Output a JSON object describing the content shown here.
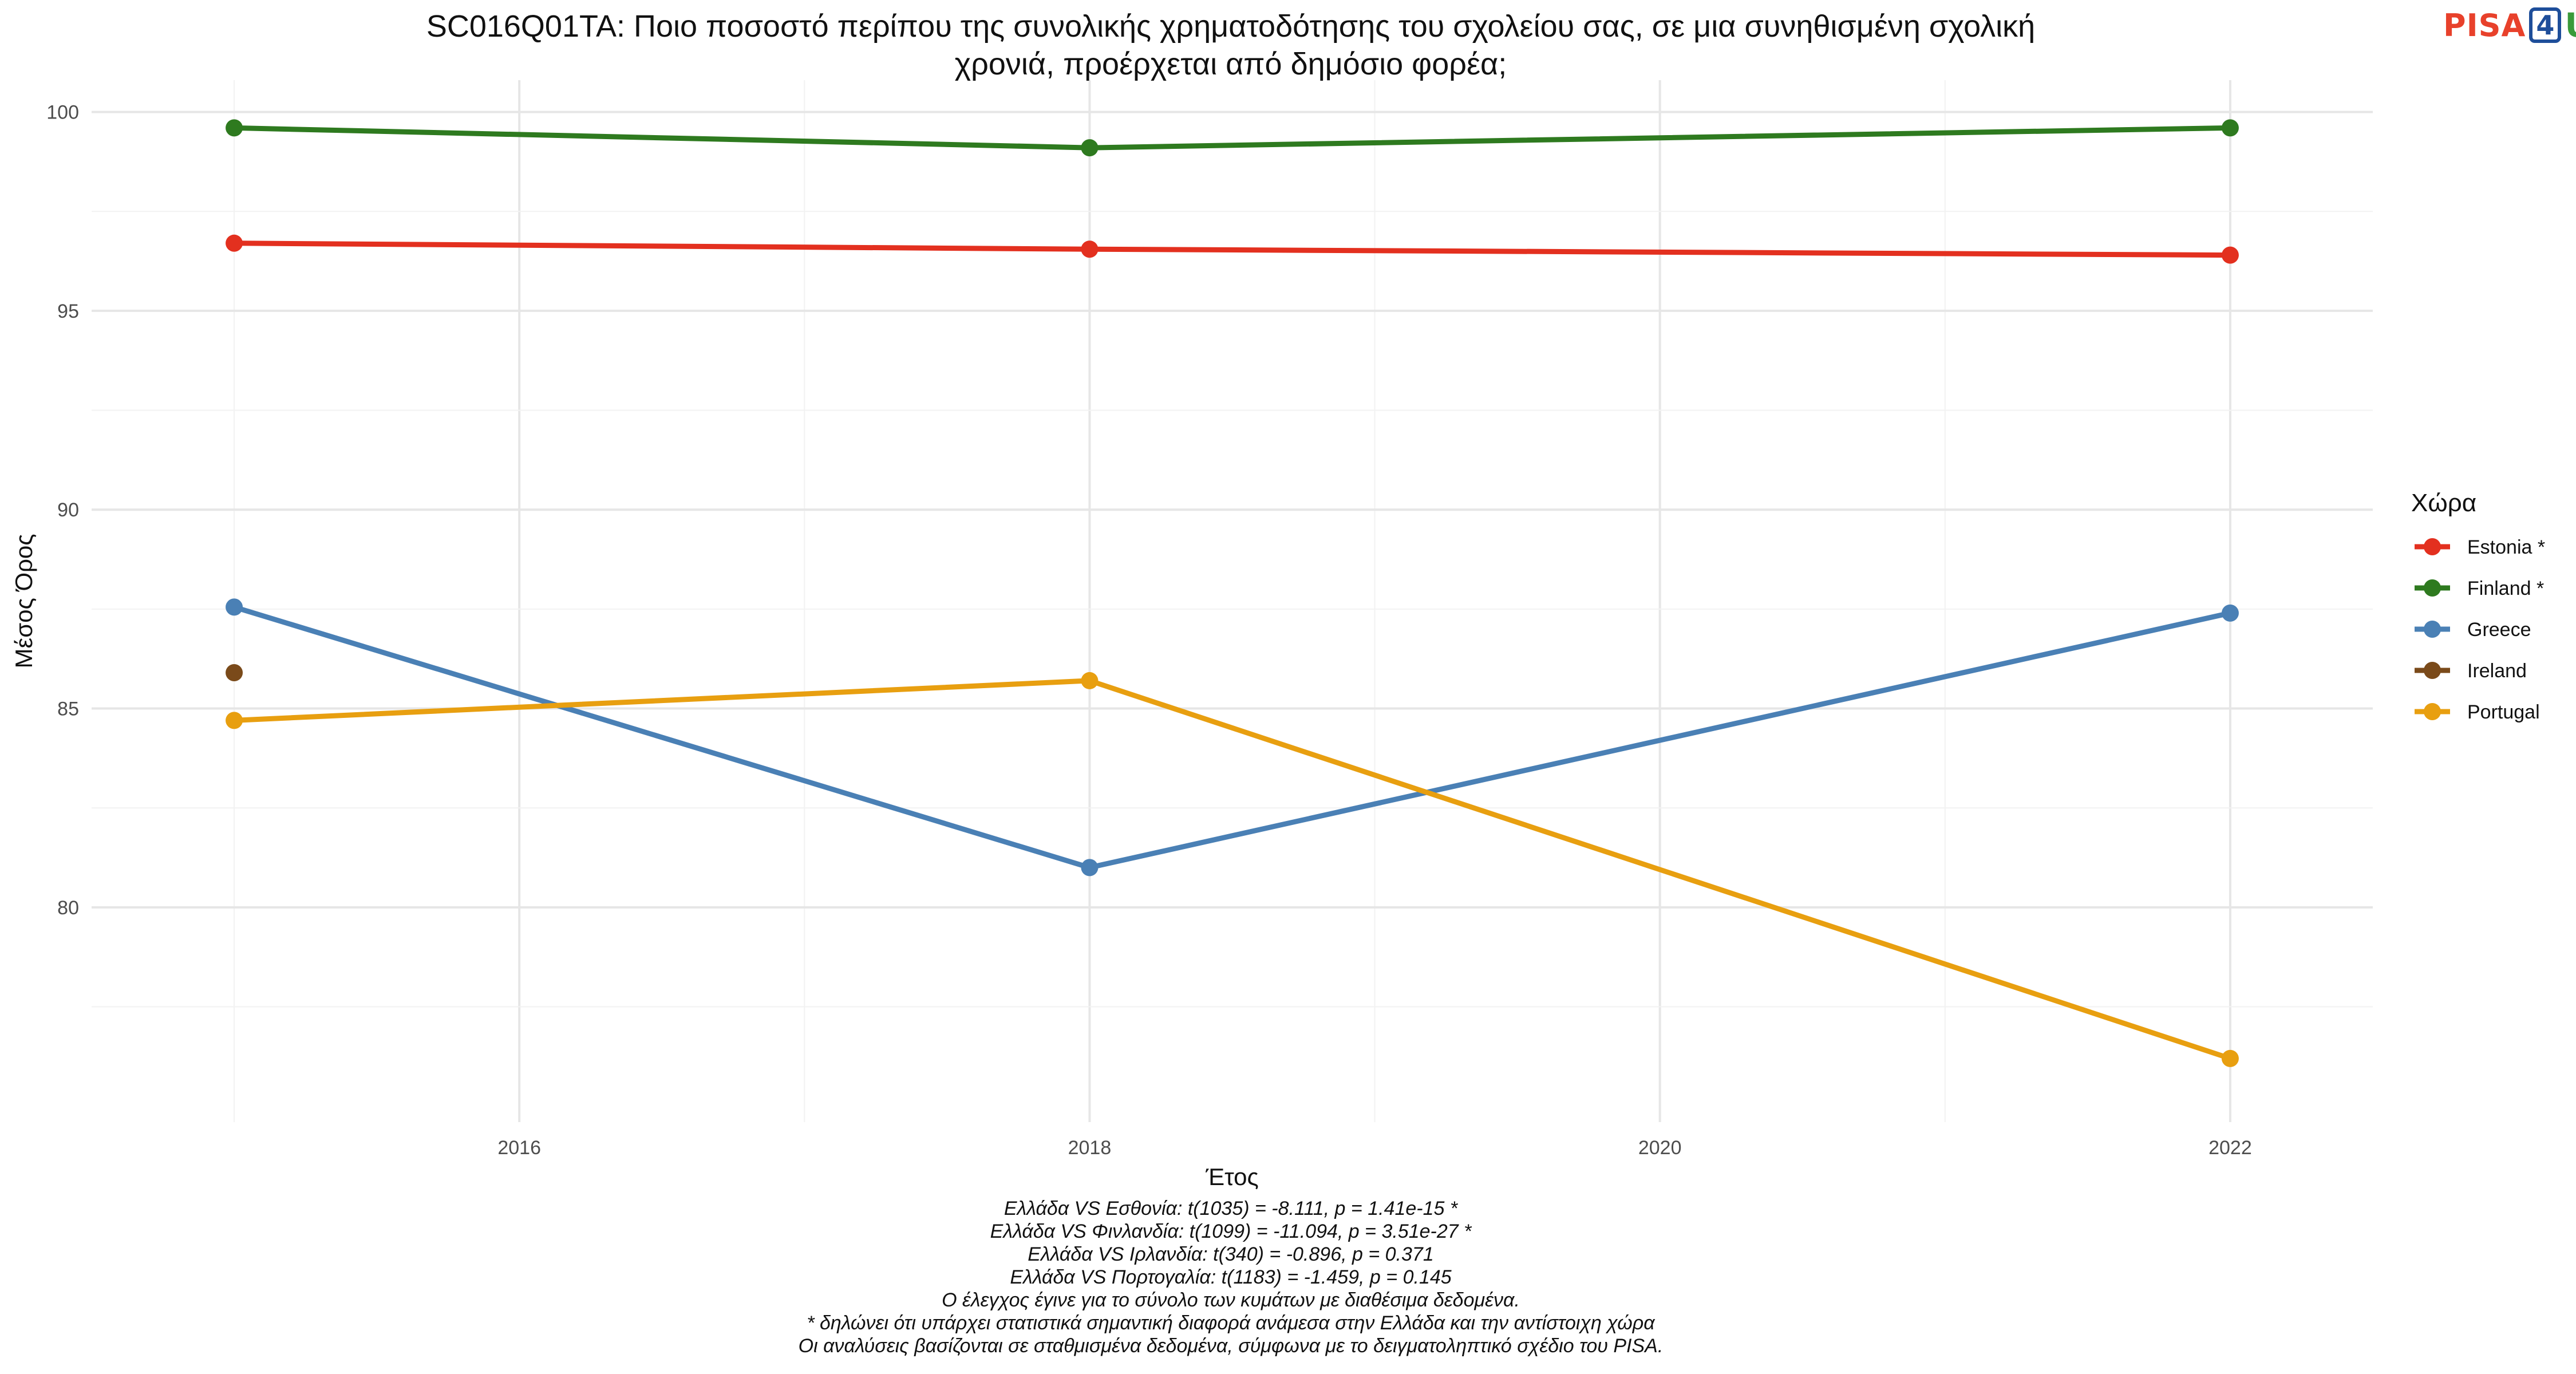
{
  "logo": {
    "part1": "PISA",
    "part2": "4",
    "part3": "U"
  },
  "chart_data": {
    "type": "line",
    "title_lines": [
      "SC016Q01TA: Ποιο ποσοστό περίπου της συνολικής χρηματοδότησης του σχολείου σας, σε μια συνηθισμένη σχολική",
      "χρονιά, προέρχεται από δημόσιο φορέα;"
    ],
    "xlabel": "Έτος",
    "ylabel": "Μέσος Όρος",
    "xlim": [
      2015,
      2022
    ],
    "ylim": [
      75,
      100
    ],
    "x_ticks": [
      2016,
      2018,
      2020,
      2022
    ],
    "y_ticks": [
      80,
      85,
      90,
      95,
      100
    ],
    "grid": true,
    "legend": {
      "title": "Χώρα",
      "position": "right"
    },
    "series": [
      {
        "name": "Estonia *",
        "color": "#e3301f",
        "points": [
          [
            2015,
            96.7
          ],
          [
            2018,
            96.55
          ],
          [
            2022,
            96.4
          ]
        ]
      },
      {
        "name": "Finland *",
        "color": "#2e7a1f",
        "points": [
          [
            2015,
            99.6
          ],
          [
            2018,
            99.1
          ],
          [
            2022,
            99.6
          ]
        ]
      },
      {
        "name": "Greece",
        "color": "#4a80b5",
        "points": [
          [
            2015,
            87.55
          ],
          [
            2018,
            81.0
          ],
          [
            2022,
            87.4
          ]
        ]
      },
      {
        "name": "Ireland",
        "color": "#7a4a1a",
        "points": [
          [
            2015,
            85.9
          ]
        ]
      },
      {
        "name": "Portugal",
        "color": "#e89f10",
        "points": [
          [
            2015,
            84.7
          ],
          [
            2018,
            85.7
          ],
          [
            2022,
            76.2
          ]
        ]
      }
    ],
    "caption": [
      "Ελλάδα VS Εσθονία: t(1035) = -8.111, p = 1.41e-15 *",
      "Ελλάδα VS Φινλανδία: t(1099) = -11.094, p = 3.51e-27 *",
      "Ελλάδα VS Ιρλανδία: t(340) = -0.896, p = 0.371",
      "Ελλάδα VS Πορτογαλία: t(1183) = -1.459, p = 0.145",
      "Ο έλεγχος έγινε για το σύνολο των κυμάτων με διαθέσιμα δεδομένα.",
      "* δηλώνει ότι υπάρχει στατιστικά σημαντική διαφορά ανάμεσα στην Ελλάδα και την αντίστοιχη χώρα",
      "Οι αναλύσεις βασίζονται σε σταθμισμένα δεδομένα, σύμφωνα με το δειγματοληπτικό σχέδιο του PISA."
    ]
  }
}
